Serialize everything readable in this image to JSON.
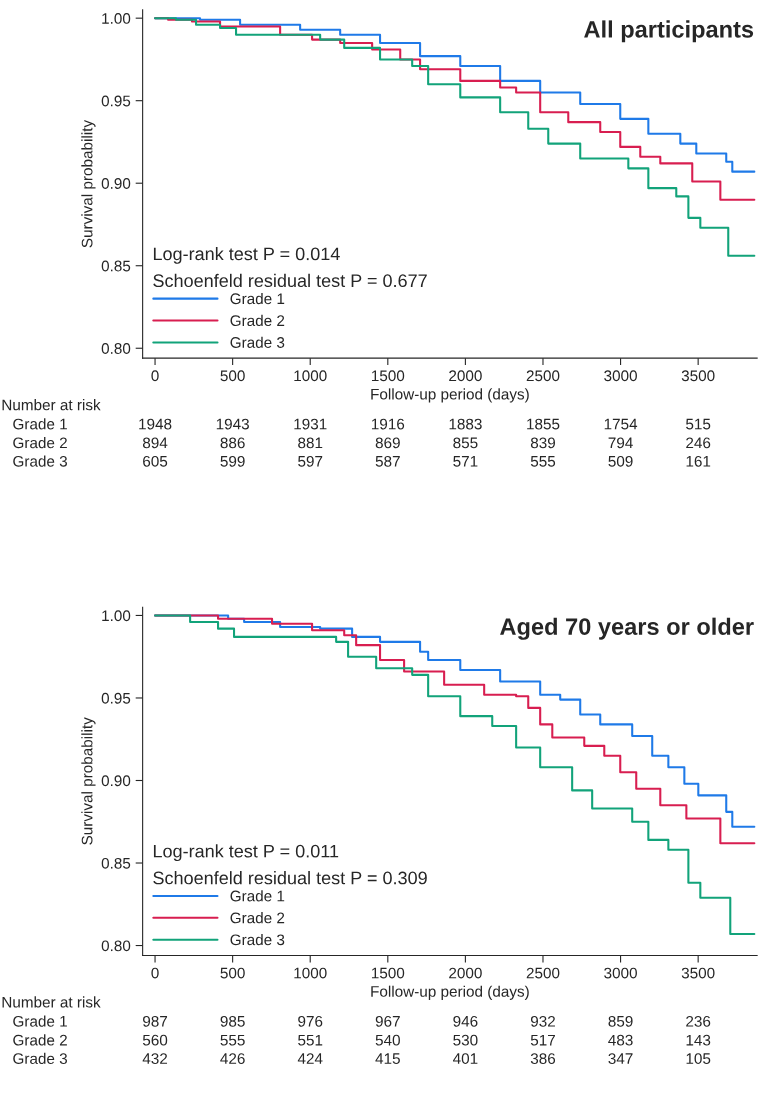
{
  "chart_data": [
    {
      "type": "step",
      "title": "All participants",
      "xlabel": "Follow-up period (days)",
      "ylabel": "Survival probability",
      "xlim": [
        -80,
        3880
      ],
      "xticks": [
        0,
        500,
        1000,
        1500,
        2000,
        2500,
        3000,
        3500
      ],
      "ylim": [
        0.794,
        1.005
      ],
      "yticks": [
        {
          "value": 0.8,
          "label": "0.80"
        },
        {
          "value": 0.85,
          "label": "0.85"
        },
        {
          "value": 0.9,
          "label": "0.90"
        },
        {
          "value": 0.95,
          "label": "0.95"
        },
        {
          "value": 1.0,
          "label": "1.00"
        }
      ],
      "legend": "bottom left",
      "grid": false,
      "series": [
        {
          "name": "Grade 1",
          "color": "#1f7ae8",
          "x": [
            0,
            290,
            548,
            935,
            1193,
            1450,
            1708,
            1967,
            2224,
            2482,
            2740,
            2998,
            3179,
            3385,
            3488,
            3681,
            3720,
            3862
          ],
          "values": [
            1.0,
            0.999,
            0.996,
            0.993,
            0.99,
            0.985,
            0.977,
            0.971,
            0.962,
            0.955,
            0.948,
            0.939,
            0.93,
            0.924,
            0.918,
            0.913,
            0.907,
            0.907
          ]
        },
        {
          "name": "Grade 2",
          "color": "#d81e50",
          "x": [
            0,
            84,
            238,
            419,
            806,
            1012,
            1193,
            1399,
            1580,
            1708,
            1967,
            2224,
            2327,
            2482,
            2663,
            2869,
            2998,
            3127,
            3256,
            3462,
            3643,
            3862
          ],
          "values": [
            1.0,
            0.999,
            0.998,
            0.995,
            0.99,
            0.987,
            0.985,
            0.981,
            0.975,
            0.969,
            0.962,
            0.958,
            0.955,
            0.943,
            0.937,
            0.931,
            0.922,
            0.916,
            0.912,
            0.901,
            0.89,
            0.89
          ]
        },
        {
          "name": "Grade 3",
          "color": "#12a37a",
          "x": [
            0,
            135,
            264,
            419,
            522,
            1064,
            1219,
            1450,
            1657,
            1760,
            1967,
            2224,
            2405,
            2534,
            2740,
            3050,
            3179,
            3359,
            3437,
            3514,
            3694,
            3862
          ],
          "values": [
            1.0,
            0.999,
            0.996,
            0.994,
            0.99,
            0.987,
            0.982,
            0.975,
            0.971,
            0.96,
            0.952,
            0.943,
            0.933,
            0.924,
            0.915,
            0.909,
            0.897,
            0.892,
            0.879,
            0.873,
            0.856,
            0.856
          ]
        }
      ],
      "annotations": [
        "Log-rank test P = 0.014",
        "Schoenfeld residual test P = 0.677",
        "Number at risk",
        "Grade 1",
        "Grade 2",
        "Grade 3",
        "1948",
        "1943",
        "1931",
        "1916",
        "1883",
        "1855",
        "1754",
        "515",
        "894",
        "886",
        "881",
        "869",
        "855",
        "839",
        "794",
        "246",
        "605",
        "599",
        "597",
        "587",
        "571",
        "555",
        "509",
        "161"
      ]
    },
    {
      "type": "step",
      "title": "Aged 70 years or older",
      "xlabel": "Follow-up period (days)",
      "ylabel": "Survival probability",
      "xlim": [
        -80,
        3880
      ],
      "xticks": [
        0,
        500,
        1000,
        1500,
        2000,
        2500,
        3000,
        3500
      ],
      "ylim": [
        0.794,
        1.005
      ],
      "yticks": [
        {
          "value": 0.8,
          "label": "0.80"
        },
        {
          "value": 0.85,
          "label": "0.85"
        },
        {
          "value": 0.9,
          "label": "0.90"
        },
        {
          "value": 0.95,
          "label": "0.95"
        },
        {
          "value": 1.0,
          "label": "1.00"
        }
      ],
      "legend": "bottom left",
      "grid": false,
      "series": [
        {
          "name": "Grade 1",
          "color": "#1f7ae8",
          "x": [
            0,
            471,
            574,
            806,
            1064,
            1270,
            1450,
            1708,
            1760,
            1967,
            2224,
            2482,
            2611,
            2740,
            2869,
            3075,
            3204,
            3308,
            3411,
            3501,
            3681,
            3720,
            3862
          ],
          "values": [
            1.0,
            0.998,
            0.996,
            0.993,
            0.992,
            0.987,
            0.984,
            0.978,
            0.973,
            0.967,
            0.96,
            0.952,
            0.949,
            0.94,
            0.934,
            0.927,
            0.915,
            0.908,
            0.898,
            0.891,
            0.881,
            0.872,
            0.872
          ]
        },
        {
          "name": "Grade 2",
          "color": "#d81e50",
          "x": [
            0,
            406,
            754,
            1012,
            1219,
            1296,
            1450,
            1605,
            1863,
            2121,
            2327,
            2405,
            2482,
            2560,
            2766,
            2895,
            2998,
            3101,
            3256,
            3424,
            3643,
            3862
          ],
          "values": [
            1.0,
            0.998,
            0.995,
            0.991,
            0.988,
            0.982,
            0.973,
            0.966,
            0.958,
            0.952,
            0.951,
            0.944,
            0.934,
            0.926,
            0.921,
            0.915,
            0.905,
            0.895,
            0.885,
            0.877,
            0.862,
            0.862
          ]
        },
        {
          "name": "Grade 3",
          "color": "#12a37a",
          "x": [
            0,
            226,
            406,
            509,
            1167,
            1244,
            1425,
            1657,
            1760,
            1967,
            2173,
            2327,
            2482,
            2688,
            2817,
            3075,
            3179,
            3308,
            3437,
            3514,
            3707,
            3862
          ],
          "values": [
            1.0,
            0.996,
            0.992,
            0.987,
            0.984,
            0.975,
            0.968,
            0.964,
            0.951,
            0.939,
            0.933,
            0.92,
            0.908,
            0.894,
            0.883,
            0.875,
            0.864,
            0.858,
            0.838,
            0.829,
            0.807,
            0.807
          ]
        }
      ],
      "annotations": [
        "Log-rank test P = 0.011",
        "Schoenfeld residual test P = 0.309",
        "Number at risk",
        "Grade 1",
        "Grade 2",
        "Grade 3",
        "987",
        "985",
        "976",
        "967",
        "946",
        "932",
        "859",
        "236",
        "560",
        "555",
        "551",
        "540",
        "530",
        "517",
        "483",
        "143",
        "432",
        "426",
        "424",
        "415",
        "401",
        "386",
        "347",
        "105"
      ]
    }
  ]
}
